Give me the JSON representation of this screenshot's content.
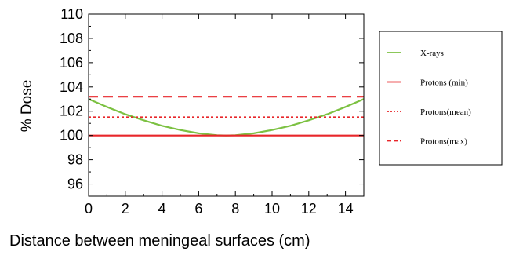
{
  "chart_data": {
    "type": "line",
    "title": "",
    "xlabel": "Distance between meningeal surfaces (cm)",
    "ylabel": "% Dose",
    "xlim": [
      0,
      15
    ],
    "ylim": [
      95,
      110
    ],
    "xticks": [
      0,
      2,
      4,
      6,
      8,
      10,
      12,
      14
    ],
    "yticks": [
      96,
      98,
      100,
      102,
      104,
      106,
      108,
      110
    ],
    "grid": false,
    "legend_position": "right",
    "series": [
      {
        "name": "X-rays",
        "color": "#7cc142",
        "style": "solid",
        "x": [
          0,
          1,
          2,
          3,
          4,
          5,
          6,
          7,
          7.5,
          8,
          9,
          10,
          11,
          12,
          13,
          14,
          15
        ],
        "y": [
          103.0,
          102.35,
          101.75,
          101.25,
          100.8,
          100.45,
          100.18,
          100.02,
          100.0,
          100.02,
          100.18,
          100.45,
          100.8,
          101.25,
          101.75,
          102.35,
          103.0
        ]
      },
      {
        "name": "Protons (min)",
        "color": "#e8262a",
        "style": "solid",
        "x": [
          0,
          15
        ],
        "y": [
          100.0,
          100.0
        ]
      },
      {
        "name": "Protons(mean)",
        "color": "#e8262a",
        "style": "dotted",
        "x": [
          0,
          15
        ],
        "y": [
          101.5,
          101.5
        ]
      },
      {
        "name": "Protons(max)",
        "color": "#e8262a",
        "style": "dashed",
        "x": [
          0,
          15
        ],
        "y": [
          103.2,
          103.2
        ]
      }
    ]
  }
}
